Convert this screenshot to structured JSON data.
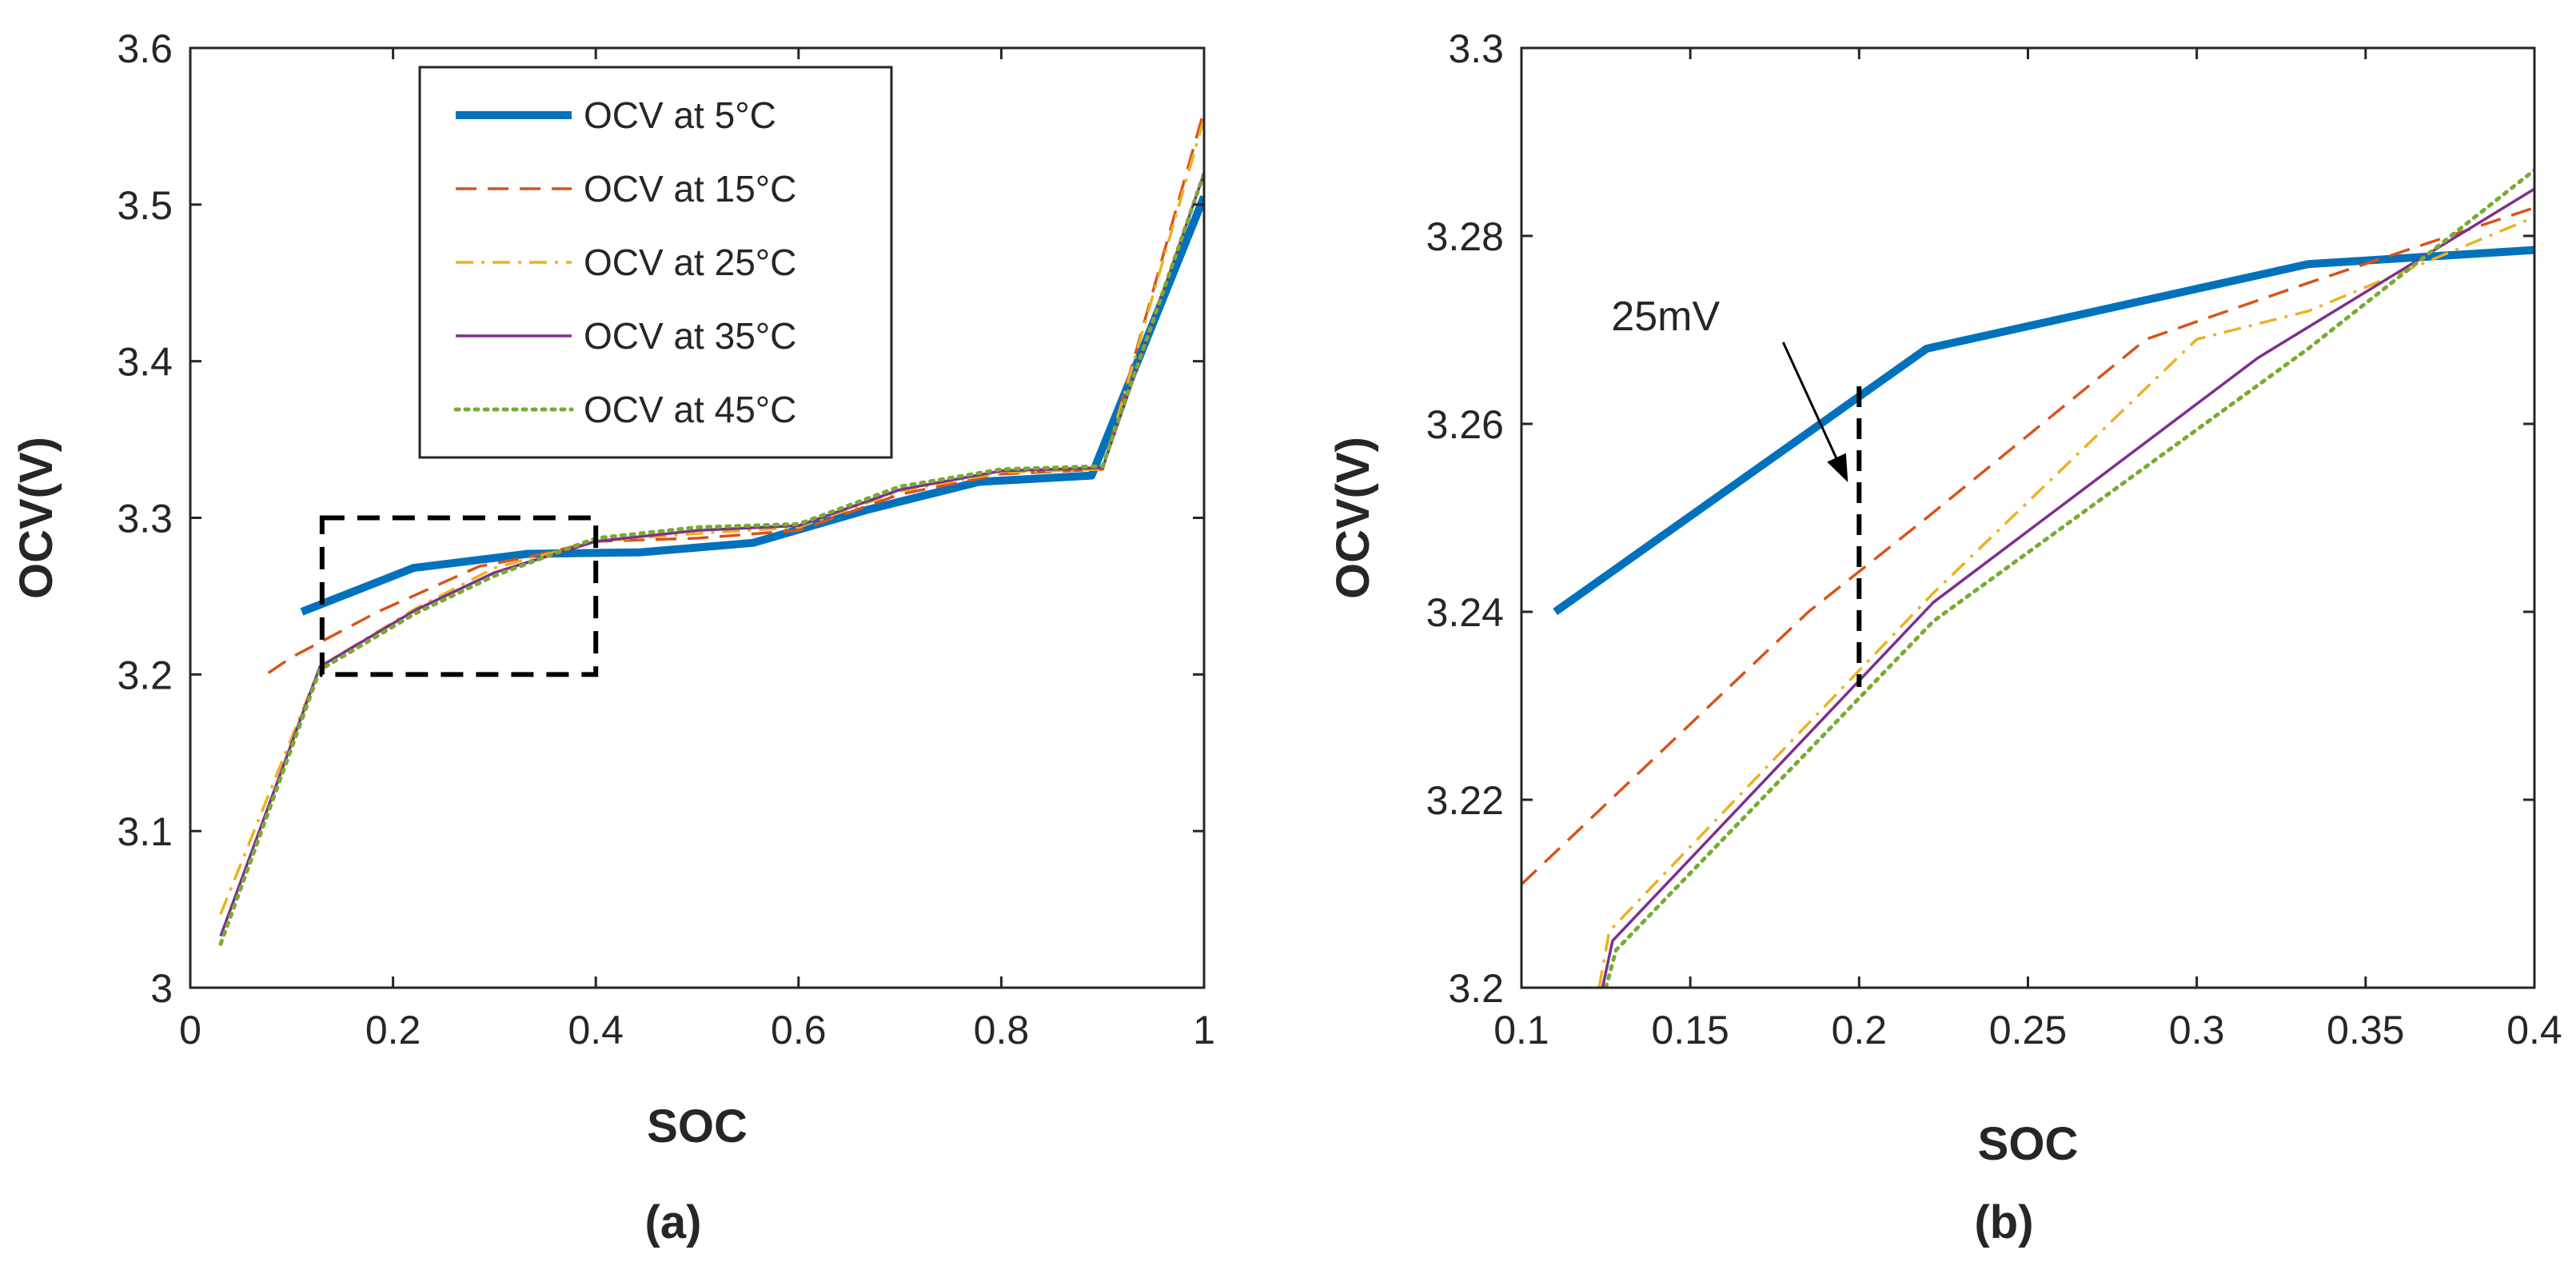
{
  "chart_data": [
    {
      "type": "line",
      "panel_label": "(a)",
      "xlabel": "SOC",
      "ylabel": "OCV(V)",
      "xlim": [
        0,
        1
      ],
      "ylim": [
        3.0,
        3.6
      ],
      "xticks": [
        0,
        0.2,
        0.4,
        0.6,
        0.8,
        1
      ],
      "xtick_labels": [
        "0",
        "0.2",
        "0.4",
        "0.6",
        "0.8",
        "1"
      ],
      "yticks": [
        3.0,
        3.1,
        3.2,
        3.3,
        3.4,
        3.5,
        3.6
      ],
      "ytick_labels": [
        "3",
        "3.1",
        "3.2",
        "3.3",
        "3.4",
        "3.5",
        "3.6"
      ],
      "grid": false,
      "legend": {
        "placement": "top-center",
        "entries": [
          "OCV at 5°C",
          "OCV at 15°C",
          "OCV at 25°C",
          "OCV at 35°C",
          "OCV at 45°C"
        ]
      },
      "annotations": [
        {
          "type": "dashed-box",
          "x": [
            0.13,
            0.4
          ],
          "y": [
            3.2,
            3.3
          ]
        }
      ],
      "series": [
        {
          "name": "OCV at 5°C",
          "color": "#0072BD",
          "style": "solid-thick",
          "points": [
            [
              0.11,
              3.24
            ],
            [
              0.22,
              3.268
            ],
            [
              0.333,
              3.277
            ],
            [
              0.444,
              3.278
            ],
            [
              0.555,
              3.284
            ],
            [
              0.667,
              3.305
            ],
            [
              0.778,
              3.323
            ],
            [
              0.889,
              3.327
            ],
            [
              1.0,
              3.505
            ]
          ]
        },
        {
          "name": "OCV at 15°C",
          "color": "#D95319",
          "style": "dashed",
          "points": [
            [
              0.077,
              3.201
            ],
            [
              0.1,
              3.211
            ],
            [
              0.185,
              3.24
            ],
            [
              0.285,
              3.269
            ],
            [
              0.333,
              3.275
            ],
            [
              0.4,
              3.285
            ],
            [
              0.5,
              3.287
            ],
            [
              0.6,
              3.292
            ],
            [
              0.7,
              3.315
            ],
            [
              0.8,
              3.328
            ],
            [
              0.9,
              3.331
            ],
            [
              1.0,
              3.56
            ]
          ]
        },
        {
          "name": "OCV at 25°C",
          "color": "#EDB120",
          "style": "dashdot",
          "points": [
            [
              0.03,
              3.047
            ],
            [
              0.125,
              3.2
            ],
            [
              0.128,
              3.205
            ],
            [
              0.222,
              3.242
            ],
            [
              0.3,
              3.268
            ],
            [
              0.4,
              3.285
            ],
            [
              0.5,
              3.29
            ],
            [
              0.6,
              3.294
            ],
            [
              0.7,
              3.317
            ],
            [
              0.8,
              3.329
            ],
            [
              0.9,
              3.331
            ],
            [
              1.0,
              3.555
            ]
          ]
        },
        {
          "name": "OCV at 35°C",
          "color": "#7E2F8E",
          "style": "solid-thin",
          "points": [
            [
              0.03,
              3.033
            ],
            [
              0.125,
              3.2
            ],
            [
              0.128,
              3.205
            ],
            [
              0.222,
              3.241
            ],
            [
              0.3,
              3.265
            ],
            [
              0.4,
              3.285
            ],
            [
              0.5,
              3.292
            ],
            [
              0.6,
              3.295
            ],
            [
              0.7,
              3.318
            ],
            [
              0.8,
              3.33
            ],
            [
              0.9,
              3.332
            ],
            [
              1.0,
              3.52
            ]
          ]
        },
        {
          "name": "OCV at 45°C",
          "color": "#77AC30",
          "style": "dotted",
          "points": [
            [
              0.03,
              3.028
            ],
            [
              0.125,
              3.198
            ],
            [
              0.128,
              3.203
            ],
            [
              0.222,
              3.239
            ],
            [
              0.3,
              3.263
            ],
            [
              0.4,
              3.287
            ],
            [
              0.5,
              3.294
            ],
            [
              0.6,
              3.296
            ],
            [
              0.7,
              3.32
            ],
            [
              0.8,
              3.331
            ],
            [
              0.9,
              3.333
            ],
            [
              1.0,
              3.52
            ]
          ]
        }
      ]
    },
    {
      "type": "line",
      "panel_label": "(b)",
      "xlabel": "SOC",
      "ylabel": "OCV(V)",
      "xlim": [
        0.1,
        0.4
      ],
      "ylim": [
        3.2,
        3.3
      ],
      "xticks": [
        0.1,
        0.15,
        0.2,
        0.25,
        0.3,
        0.35,
        0.4
      ],
      "xtick_labels": [
        "0.1",
        "0.15",
        "0.2",
        "0.25",
        "0.3",
        "0.35",
        "0.4"
      ],
      "yticks": [
        3.2,
        3.22,
        3.24,
        3.26,
        3.28,
        3.3
      ],
      "ytick_labels": [
        "3.2",
        "3.22",
        "3.24",
        "3.26",
        "3.28",
        "3.3"
      ],
      "grid": false,
      "annotations": [
        {
          "type": "dashed-vline",
          "text": "25mV",
          "x": 0.2,
          "y": [
            3.232,
            3.264
          ]
        }
      ],
      "series": [
        {
          "name": "OCV at 5°C",
          "color": "#0072BD",
          "style": "solid-thick",
          "points": [
            [
              0.11,
              3.24
            ],
            [
              0.22,
              3.268
            ],
            [
              0.333,
              3.277
            ],
            [
              0.4,
              3.2785
            ]
          ]
        },
        {
          "name": "OCV at 15°C",
          "color": "#D95319",
          "style": "dashed",
          "points": [
            [
              0.1,
              3.211
            ],
            [
              0.185,
              3.24
            ],
            [
              0.22,
              3.25
            ],
            [
              0.285,
              3.269
            ],
            [
              0.333,
              3.275
            ],
            [
              0.4,
              3.283
            ]
          ]
        },
        {
          "name": "OCV at 25°C",
          "color": "#EDB120",
          "style": "dashdot",
          "points": [
            [
              0.123,
              3.2
            ],
            [
              0.126,
              3.206
            ],
            [
              0.222,
              3.242
            ],
            [
              0.3,
              3.269
            ],
            [
              0.333,
              3.272
            ],
            [
              0.4,
              3.282
            ]
          ]
        },
        {
          "name": "OCV at 35°C",
          "color": "#7E2F8E",
          "style": "solid-thin",
          "points": [
            [
              0.124,
              3.2
            ],
            [
              0.127,
              3.205
            ],
            [
              0.222,
              3.241
            ],
            [
              0.318,
              3.267
            ],
            [
              0.4,
              3.285
            ]
          ]
        },
        {
          "name": "OCV at 45°C",
          "color": "#77AC30",
          "style": "dotted",
          "points": [
            [
              0.125,
              3.2
            ],
            [
              0.128,
              3.204
            ],
            [
              0.222,
              3.239
            ],
            [
              0.333,
              3.268
            ],
            [
              0.4,
              3.287
            ]
          ]
        }
      ]
    }
  ]
}
